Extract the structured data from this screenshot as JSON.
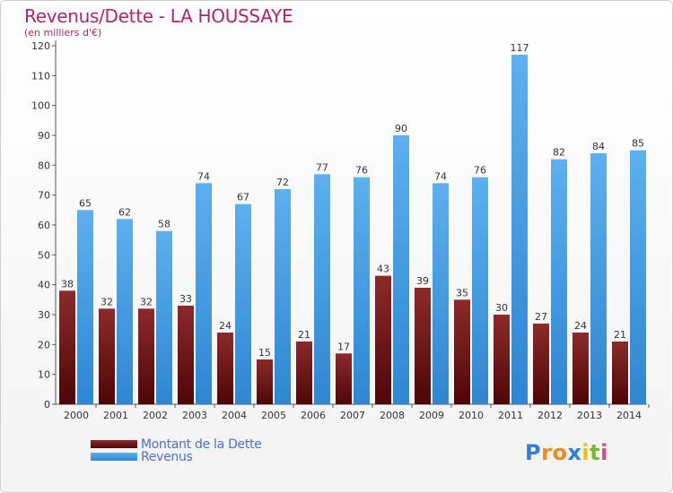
{
  "chart_data": {
    "type": "bar",
    "title": "Revenus/Dette - LA HOUSSAYE",
    "subtitle": "(en milliers d'€)",
    "categories": [
      "2000",
      "2001",
      "2002",
      "2003",
      "2004",
      "2005",
      "2006",
      "2007",
      "2008",
      "2009",
      "2010",
      "2011",
      "2012",
      "2013",
      "2014"
    ],
    "series": [
      {
        "name": "Montant de la Dette",
        "color": "#7a1414",
        "values": [
          38,
          32,
          32,
          33,
          24,
          15,
          21,
          17,
          43,
          39,
          35,
          30,
          27,
          24,
          21
        ]
      },
      {
        "name": "Revenus",
        "color": "#3f9be6",
        "values": [
          65,
          62,
          58,
          74,
          67,
          72,
          77,
          76,
          90,
          74,
          76,
          117,
          82,
          84,
          85
        ]
      }
    ],
    "yticks": [
      0,
      10,
      20,
      30,
      40,
      50,
      60,
      70,
      80,
      90,
      100,
      110,
      120
    ],
    "ylim": [
      0,
      120
    ],
    "grid": false,
    "legend_placement": "bottom-left"
  },
  "logo": {
    "letters": [
      "P",
      "r",
      "o",
      "x",
      "i",
      "t",
      "i"
    ],
    "colors": [
      "#2e7fd6",
      "#f08a1c",
      "#f08a1c",
      "#2e7fd6",
      "#e7c21a",
      "#7ab82d",
      "#e04a7a"
    ]
  }
}
